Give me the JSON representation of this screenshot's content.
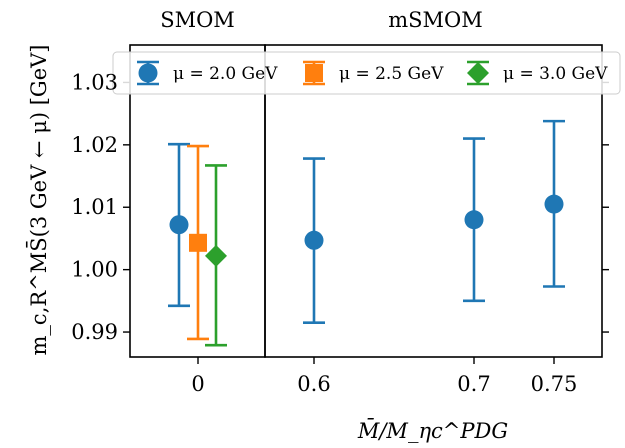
{
  "chart_data": {
    "type": "scatter",
    "panels": [
      {
        "title": "SMOM",
        "xticks": [
          {
            "value": 0,
            "label": "0"
          }
        ]
      },
      {
        "title": "mSMOM",
        "xticks": [
          {
            "value": 0.6,
            "label": "0.6"
          },
          {
            "value": 0.7,
            "label": "0.7"
          },
          {
            "value": 0.75,
            "label": "0.75"
          }
        ]
      }
    ],
    "xlabel": "M̄/M_ηc^PDG",
    "ylabel": "m_c,R^MS̄(3 GeV ← μ) [GeV]",
    "ylim": [
      0.986,
      1.036
    ],
    "yticks": [
      {
        "value": 0.99,
        "label": "0.99"
      },
      {
        "value": 1.0,
        "label": "1.00"
      },
      {
        "value": 1.01,
        "label": "1.01"
      },
      {
        "value": 1.02,
        "label": "1.02"
      },
      {
        "value": 1.03,
        "label": "1.03"
      }
    ],
    "legend_position": "top",
    "series": [
      {
        "name": "μ = 2.0 GeV",
        "color": "#1f77b4",
        "marker": "circle",
        "points": [
          {
            "panel": "SMOM",
            "x": 0,
            "y": 1.0072,
            "yerr_low": 0.9942,
            "yerr_high": 1.0201
          },
          {
            "panel": "mSMOM",
            "x": 0.6,
            "y": 1.0047,
            "yerr_low": 0.9915,
            "yerr_high": 1.0178
          },
          {
            "panel": "mSMOM",
            "x": 0.7,
            "y": 1.008,
            "yerr_low": 0.995,
            "yerr_high": 1.021
          },
          {
            "panel": "mSMOM",
            "x": 0.75,
            "y": 1.0105,
            "yerr_low": 0.9973,
            "yerr_high": 1.0238
          }
        ]
      },
      {
        "name": "μ = 2.5 GeV",
        "color": "#ff7f0e",
        "marker": "square",
        "points": [
          {
            "panel": "SMOM",
            "x": 0,
            "y": 1.0043,
            "yerr_low": 0.9889,
            "yerr_high": 1.0198
          }
        ]
      },
      {
        "name": "μ = 3.0 GeV",
        "color": "#2ca02c",
        "marker": "diamond",
        "points": [
          {
            "panel": "SMOM",
            "x": 0,
            "y": 1.0022,
            "yerr_low": 0.9879,
            "yerr_high": 1.0167
          }
        ]
      }
    ]
  }
}
